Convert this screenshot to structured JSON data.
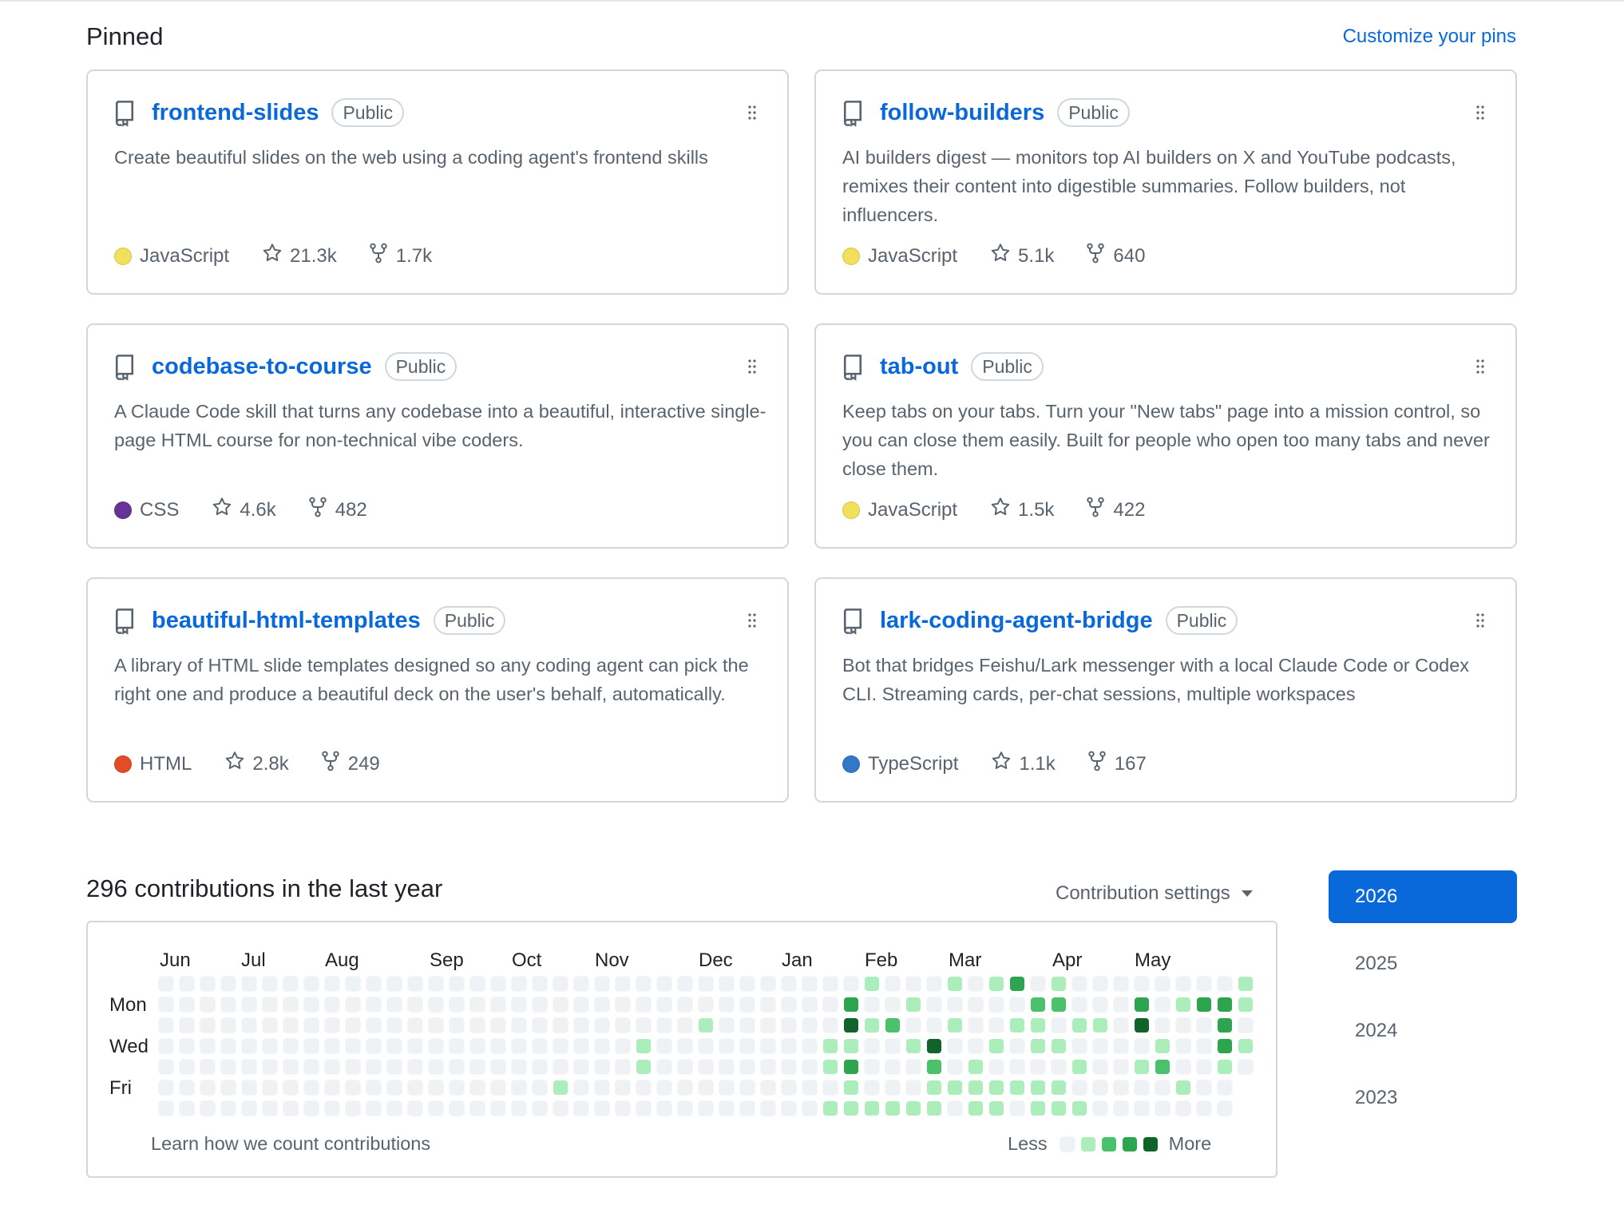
{
  "pinned": {
    "title": "Pinned",
    "customize_label": "Customize your pins",
    "repos": [
      {
        "name": "frontend-slides",
        "visibility": "Public",
        "description": "Create beautiful slides on the web using a coding agent's frontend skills",
        "language": "JavaScript",
        "language_color": "#f1e05a",
        "stars": "21.3k",
        "forks": "1.7k"
      },
      {
        "name": "follow-builders",
        "visibility": "Public",
        "description": "AI builders digest — monitors top AI builders on X and YouTube podcasts, remixes their content into digestible summaries. Follow builders, not influencers.",
        "language": "JavaScript",
        "language_color": "#f1e05a",
        "stars": "5.1k",
        "forks": "640"
      },
      {
        "name": "codebase-to-course",
        "visibility": "Public",
        "description": "A Claude Code skill that turns any codebase into a beautiful, interactive single-page HTML course for non-technical vibe coders.",
        "language": "CSS",
        "language_color": "#663399",
        "stars": "4.6k",
        "forks": "482"
      },
      {
        "name": "tab-out",
        "visibility": "Public",
        "description": "Keep tabs on your tabs. Turn your \"New tabs\" page into a mission control, so you can close them easily. Built for people who open too many tabs and never close them.",
        "language": "JavaScript",
        "language_color": "#f1e05a",
        "stars": "1.5k",
        "forks": "422"
      },
      {
        "name": "beautiful-html-templates",
        "visibility": "Public",
        "description": "A library of HTML slide templates designed so any coding agent can pick the right one and produce a beautiful deck on the user's behalf, automatically.",
        "language": "HTML",
        "language_color": "#e34c26",
        "stars": "2.8k",
        "forks": "249"
      },
      {
        "name": "lark-coding-agent-bridge",
        "visibility": "Public",
        "description": "Bot that bridges Feishu/Lark messenger with a local Claude Code or Codex CLI. Streaming cards, per-chat sessions, multiple workspaces",
        "language": "TypeScript",
        "language_color": "#3178c6",
        "stars": "1.1k",
        "forks": "167"
      }
    ]
  },
  "contributions": {
    "title": "296 contributions in the last year",
    "settings_label": "Contribution settings",
    "months": [
      "Jun",
      "Jul",
      "Aug",
      "Sep",
      "Oct",
      "Nov",
      "Dec",
      "Jan",
      "Feb",
      "Mar",
      "Apr",
      "May"
    ],
    "day_labels": [
      "Mon",
      "Wed",
      "Fri"
    ],
    "learn_label": "Learn how we count contributions",
    "legend_less": "Less",
    "legend_more": "More",
    "level_colors": [
      "#eff2f5",
      "#aceebb",
      "#4ac26b",
      "#2da44e",
      "#116329"
    ],
    "weeks": 53,
    "last_week_days": 5,
    "active_days": [
      [
        19,
        5
      ],
      [
        23,
        4
      ],
      [
        23,
        3
      ],
      [
        26,
        2
      ],
      [
        32,
        3
      ],
      [
        32,
        4
      ],
      [
        32,
        6
      ],
      [
        33,
        1
      ],
      [
        33,
        2
      ],
      [
        33,
        3
      ],
      [
        33,
        4
      ],
      [
        33,
        5
      ],
      [
        33,
        6
      ],
      [
        34,
        0
      ],
      [
        34,
        2
      ],
      [
        34,
        6
      ],
      [
        35,
        2
      ],
      [
        35,
        6
      ],
      [
        36,
        1
      ],
      [
        36,
        3
      ],
      [
        36,
        6
      ],
      [
        37,
        3
      ],
      [
        37,
        4
      ],
      [
        37,
        5
      ],
      [
        37,
        6
      ],
      [
        38,
        0
      ],
      [
        38,
        2
      ],
      [
        38,
        5
      ],
      [
        39,
        4
      ],
      [
        39,
        5
      ],
      [
        39,
        6
      ],
      [
        40,
        0
      ],
      [
        40,
        3
      ],
      [
        40,
        5
      ],
      [
        40,
        6
      ],
      [
        41,
        0
      ],
      [
        41,
        2
      ],
      [
        41,
        5
      ],
      [
        42,
        1
      ],
      [
        42,
        2
      ],
      [
        42,
        3
      ],
      [
        42,
        5
      ],
      [
        42,
        6
      ],
      [
        43,
        0
      ],
      [
        43,
        1
      ],
      [
        43,
        3
      ],
      [
        43,
        5
      ],
      [
        43,
        6
      ],
      [
        44,
        2
      ],
      [
        44,
        4
      ],
      [
        44,
        6
      ],
      [
        45,
        2
      ],
      [
        47,
        1
      ],
      [
        47,
        2
      ],
      [
        47,
        4
      ],
      [
        48,
        3
      ],
      [
        48,
        4
      ],
      [
        49,
        1
      ],
      [
        49,
        5
      ],
      [
        50,
        1
      ],
      [
        51,
        1
      ],
      [
        51,
        2
      ],
      [
        51,
        3
      ],
      [
        51,
        4
      ],
      [
        52,
        0
      ],
      [
        52,
        1
      ],
      [
        52,
        3
      ]
    ],
    "active_levels": [
      1,
      1,
      1,
      1,
      1,
      1,
      1,
      3,
      4,
      1,
      3,
      1,
      1,
      1,
      1,
      1,
      2,
      1,
      1,
      1,
      1,
      4,
      2,
      1,
      1,
      1,
      1,
      1,
      1,
      1,
      1,
      1,
      1,
      1,
      1,
      3,
      1,
      1,
      2,
      1,
      1,
      1,
      1,
      1,
      2,
      1,
      1,
      1,
      1,
      1,
      1,
      1,
      3,
      4,
      1,
      1,
      2,
      1,
      1,
      3,
      3,
      3,
      3,
      1,
      1,
      1,
      1
    ]
  },
  "years": [
    "2026",
    "2025",
    "2024",
    "2023"
  ],
  "active_year": "2026"
}
